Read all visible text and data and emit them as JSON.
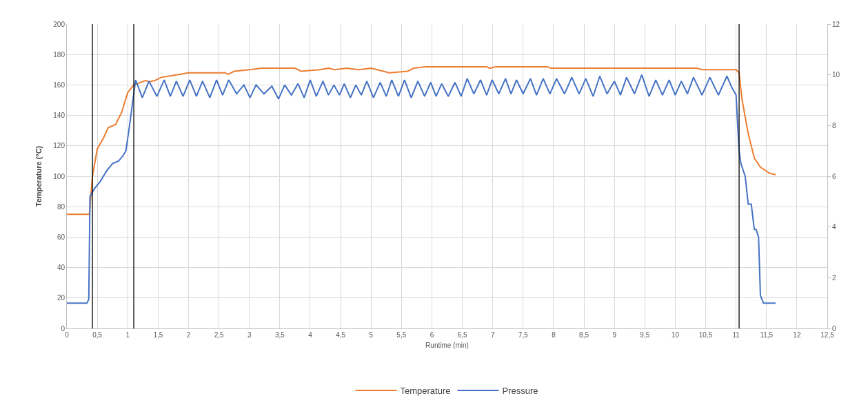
{
  "chart_data": {
    "type": "line",
    "xlabel": "Runtime (min)",
    "ylabel": "Temperature (°C)",
    "xlim": [
      0,
      12.5
    ],
    "xticks": [
      0,
      {
        "value": 0.5,
        "label": "0,5"
      },
      1,
      {
        "value": 1.5,
        "label": "1,5"
      },
      2,
      {
        "value": 2.5,
        "label": "2,5"
      },
      3,
      {
        "value": 3.5,
        "label": "3,5"
      },
      4,
      {
        "value": 4.5,
        "label": "4,5"
      },
      5,
      {
        "value": 5.5,
        "label": "5,5"
      },
      6,
      {
        "value": 6.5,
        "label": "6,5"
      },
      7,
      {
        "value": 7.5,
        "label": "7,5"
      },
      8,
      {
        "value": 8.5,
        "label": "8,5"
      },
      9,
      {
        "value": 9.5,
        "label": "9,5"
      },
      10,
      {
        "value": 10.5,
        "label": "10,5"
      },
      11,
      {
        "value": 11.5,
        "label": "11,5"
      },
      12,
      {
        "value": 12.5,
        "label": "12,5"
      }
    ],
    "ylim": [
      0,
      200
    ],
    "yticks": [
      0,
      20,
      40,
      60,
      80,
      100,
      120,
      140,
      160,
      180,
      200
    ],
    "y2lim": [
      0,
      12
    ],
    "y2ticks": [
      0,
      2,
      4,
      6,
      8,
      10,
      12
    ],
    "grid": true,
    "legend": "bottom",
    "marker": "none",
    "line_style": "solid",
    "ref_lines": [
      {
        "axis": "x",
        "value": 0.42,
        "color": "#000000"
      },
      {
        "axis": "x",
        "value": 1.1,
        "color": "#000000"
      },
      {
        "axis": "x",
        "value": 11.05,
        "color": "#000000"
      }
    ],
    "series": [
      {
        "name": "Temperature",
        "color": "#ed7d31",
        "x": [
          0,
          0.37,
          0.42,
          0.5,
          0.6,
          0.68,
          0.8,
          0.9,
          1.0,
          1.1,
          1.3,
          1.35,
          1.45,
          1.55,
          1.7,
          1.85,
          2.0,
          2.6,
          2.65,
          2.75,
          3.0,
          3.2,
          3.75,
          3.85,
          4.15,
          4.3,
          4.4,
          4.6,
          4.8,
          5.0,
          5.1,
          5.3,
          5.6,
          5.7,
          5.9,
          6.9,
          6.95,
          7.05,
          7.9,
          7.95,
          10.35,
          10.45,
          11.0,
          11.05,
          11.1,
          11.2,
          11.3,
          11.4,
          11.55,
          11.65
        ],
        "values": [
          75,
          75,
          100,
          118,
          125,
          132,
          134,
          142,
          155,
          160,
          163,
          162,
          163,
          165,
          166,
          167,
          168,
          168,
          167,
          169,
          170,
          171,
          171,
          169,
          170,
          171,
          170,
          171,
          170,
          171,
          170,
          168,
          169,
          171,
          172,
          172,
          171,
          172,
          172,
          171,
          171,
          170,
          170,
          168,
          150,
          128,
          112,
          106,
          102,
          101
        ]
      },
      {
        "name": "Pressure",
        "color": "#4472c4",
        "axis": "y2",
        "x": [
          0,
          0.33,
          0.36,
          0.38,
          0.45,
          0.55,
          0.65,
          0.75,
          0.85,
          0.92,
          0.97,
          1.03,
          1.13,
          1.24,
          1.35,
          1.48,
          1.6,
          1.7,
          1.8,
          1.91,
          2.02,
          2.13,
          2.23,
          2.35,
          2.46,
          2.56,
          2.66,
          2.79,
          2.91,
          3.01,
          3.11,
          3.24,
          3.37,
          3.48,
          3.58,
          3.69,
          3.8,
          3.9,
          4.0,
          4.1,
          4.21,
          4.3,
          4.39,
          4.48,
          4.56,
          4.66,
          4.75,
          4.84,
          4.93,
          5.04,
          5.15,
          5.25,
          5.34,
          5.45,
          5.55,
          5.66,
          5.77,
          5.88,
          5.98,
          6.07,
          6.16,
          6.27,
          6.38,
          6.48,
          6.58,
          6.69,
          6.8,
          6.9,
          6.99,
          7.1,
          7.21,
          7.3,
          7.39,
          7.5,
          7.62,
          7.72,
          7.83,
          7.94,
          8.05,
          8.18,
          8.3,
          8.42,
          8.53,
          8.65,
          8.76,
          8.88,
          9.0,
          9.1,
          9.2,
          9.33,
          9.45,
          9.57,
          9.68,
          9.79,
          9.9,
          10.0,
          10.1,
          10.2,
          10.3,
          10.44,
          10.57,
          10.71,
          10.85,
          10.93,
          11.0,
          11.05,
          11.08,
          11.15,
          11.2,
          11.25,
          11.3,
          11.33,
          11.37,
          11.4,
          11.45,
          11.6,
          11.65
        ],
        "values": [
          1.0,
          1.0,
          1.15,
          5.2,
          5.5,
          5.8,
          6.2,
          6.5,
          6.6,
          6.8,
          7.0,
          8.0,
          9.8,
          9.1,
          9.75,
          9.15,
          9.8,
          9.15,
          9.75,
          9.15,
          9.8,
          9.15,
          9.75,
          9.1,
          9.8,
          9.2,
          9.8,
          9.25,
          9.6,
          9.1,
          9.6,
          9.25,
          9.55,
          9.05,
          9.6,
          9.2,
          9.65,
          9.1,
          9.8,
          9.15,
          9.75,
          9.2,
          9.6,
          9.2,
          9.65,
          9.1,
          9.6,
          9.2,
          9.75,
          9.1,
          9.7,
          9.15,
          9.8,
          9.15,
          9.8,
          9.1,
          9.75,
          9.15,
          9.7,
          9.15,
          9.65,
          9.15,
          9.7,
          9.15,
          9.85,
          9.25,
          9.8,
          9.2,
          9.8,
          9.25,
          9.85,
          9.25,
          9.8,
          9.25,
          9.85,
          9.2,
          9.85,
          9.25,
          9.85,
          9.25,
          9.9,
          9.25,
          9.85,
          9.15,
          9.95,
          9.25,
          9.75,
          9.2,
          9.9,
          9.25,
          10.0,
          9.15,
          9.8,
          9.2,
          9.8,
          9.2,
          9.75,
          9.25,
          9.9,
          9.2,
          9.9,
          9.2,
          9.95,
          9.5,
          9.2,
          7.0,
          6.5,
          6.0,
          4.9,
          4.9,
          3.9,
          3.9,
          3.6,
          1.3,
          1.0,
          1.0,
          1.0
        ]
      }
    ]
  }
}
